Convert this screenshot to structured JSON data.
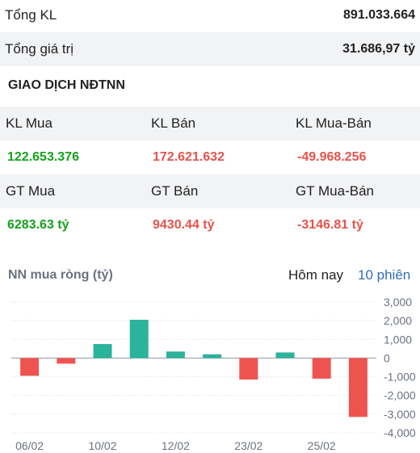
{
  "summary": {
    "total_volume_label": "Tổng KL",
    "total_volume_value": "891.033.664",
    "total_value_label": "Tổng giá trị",
    "total_value_value": "31.686,97 tỷ"
  },
  "foreign": {
    "section_title": "GIAO DỊCH NĐTNN",
    "headers_volume": [
      "KL Mua",
      "KL Bán",
      "KL Mua-Bán"
    ],
    "values_volume": [
      "122.653.376",
      "172.621.632",
      "-49.968.256"
    ],
    "headers_value": [
      "GT Mua",
      "GT Bán",
      "GT Mua-Bán"
    ],
    "values_value": [
      "6283.63 tỷ",
      "9430.44 tỷ",
      "-3146.81 tỷ"
    ]
  },
  "net_chart": {
    "title": "NN mua ròng (tỷ)",
    "tab_today": "Hôm nay",
    "tab_10_sessions": "10 phiên",
    "colors": {
      "positive": "#2bb39b",
      "negative": "#ef5350",
      "grid": "#e5e7eb",
      "zero": "#9ca3af"
    }
  },
  "chart_data": {
    "type": "bar",
    "title": "NN mua ròng (tỷ)",
    "xlabel": "",
    "ylabel": "",
    "ylim": [
      -4000,
      3000
    ],
    "yticks": [
      3000,
      2000,
      1000,
      0,
      -1000,
      -2000,
      -3000,
      -4000
    ],
    "ytick_labels": [
      "3,000",
      "2,000",
      "1,000",
      "0",
      "-1,000",
      "-2,000",
      "-3,000",
      "-4,000"
    ],
    "values": [
      -950,
      -300,
      750,
      2050,
      350,
      200,
      -1150,
      300,
      -1100,
      -3150
    ],
    "xtick_labels": [
      {
        "index": 0,
        "label": "06/02"
      },
      {
        "index": 2,
        "label": "10/02"
      },
      {
        "index": 4,
        "label": "12/02"
      },
      {
        "index": 6,
        "label": "23/02"
      },
      {
        "index": 8,
        "label": "25/02"
      }
    ],
    "grid": true
  }
}
